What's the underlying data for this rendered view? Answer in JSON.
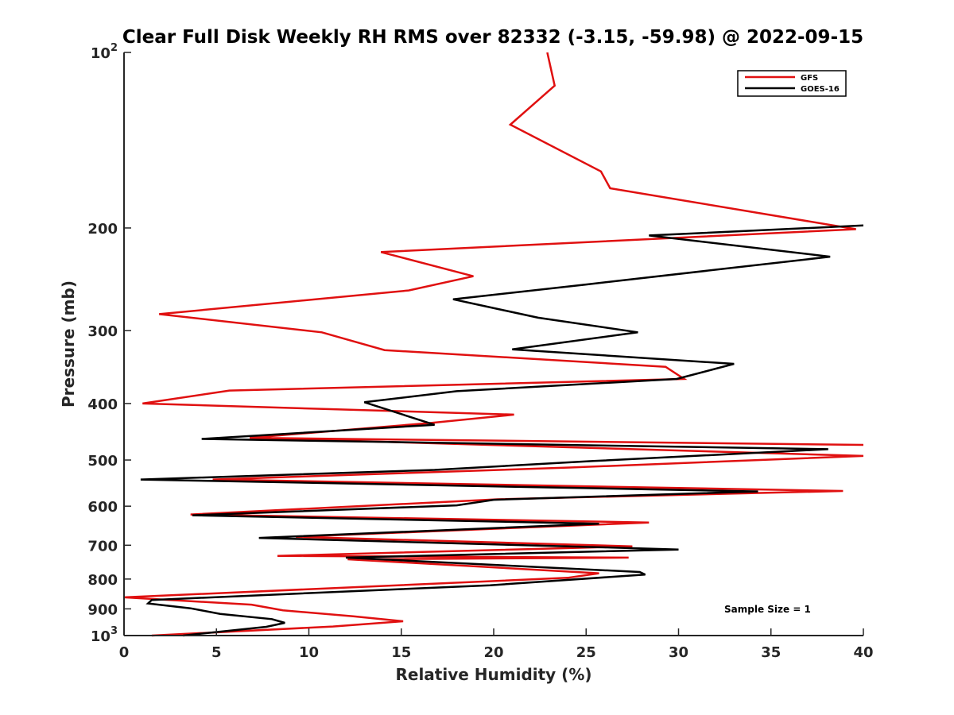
{
  "chart_data": {
    "type": "line",
    "title": "Clear Full Disk Weekly RH RMS over 82332 (-3.15, -59.98) @ 2022-09-15",
    "xlabel": "Relative Humidity (%)",
    "ylabel": "Pressure (mb)",
    "xlim": [
      0,
      40
    ],
    "ylim": [
      100,
      1000
    ],
    "y_scale": "log",
    "y_reversed": true,
    "grid": false,
    "legend_position": "top-right",
    "x_ticks": [
      "0",
      "5",
      "10",
      "15",
      "20",
      "25",
      "30",
      "35",
      "40"
    ],
    "y_ticks": [
      {
        "value": 100,
        "base": "10",
        "exp": "2"
      },
      {
        "value": 200,
        "label": "200"
      },
      {
        "value": 300,
        "label": "300"
      },
      {
        "value": 400,
        "label": "400"
      },
      {
        "value": 500,
        "label": "500"
      },
      {
        "value": 600,
        "label": "600"
      },
      {
        "value": 700,
        "label": "700"
      },
      {
        "value": 800,
        "label": "800"
      },
      {
        "value": 900,
        "label": "900"
      },
      {
        "value": 1000,
        "base": "10",
        "exp": "3"
      }
    ],
    "annotation": "Sample Size = 1",
    "series": [
      {
        "name": "GFS",
        "color": "#e01010",
        "points": [
          [
            22.9,
            100
          ],
          [
            23.3,
            114
          ],
          [
            20.9,
            133
          ],
          [
            25.8,
            160
          ],
          [
            26.3,
            171
          ],
          [
            39.6,
            201
          ],
          [
            13.9,
            220
          ],
          [
            18.9,
            242
          ],
          [
            15.4,
            256
          ],
          [
            1.9,
            281
          ],
          [
            10.7,
            302
          ],
          [
            14.1,
            324
          ],
          [
            29.3,
            346
          ],
          [
            30.3,
            363
          ],
          [
            5.7,
            380
          ],
          [
            1.0,
            400
          ],
          [
            21.1,
            418
          ],
          [
            16.6,
            432
          ],
          [
            6.8,
            458
          ],
          [
            40.0,
            471
          ],
          [
            6.8,
            458
          ],
          [
            40.0,
            492
          ],
          [
            24.1,
            515
          ],
          [
            4.8,
            540
          ],
          [
            38.9,
            565
          ],
          [
            20.2,
            584
          ],
          [
            3.6,
            620
          ],
          [
            28.4,
            640
          ],
          [
            9.3,
            677
          ],
          [
            27.5,
            703
          ],
          [
            8.3,
            730
          ],
          [
            27.3,
            735
          ],
          [
            12.1,
            740
          ],
          [
            25.7,
            782
          ],
          [
            24.0,
            796
          ],
          [
            0.0,
            860
          ],
          [
            6.9,
            885
          ],
          [
            8.6,
            905
          ],
          [
            12.4,
            927
          ],
          [
            15.1,
            945
          ],
          [
            11.3,
            965
          ],
          [
            1.5,
            1000
          ]
        ]
      },
      {
        "name": "GOES-16",
        "color": "#000000",
        "points": [
          [
            40.0,
            198
          ],
          [
            28.4,
            206
          ],
          [
            38.2,
            224
          ],
          [
            25.0,
            250
          ],
          [
            17.8,
            265
          ],
          [
            22.4,
            285
          ],
          [
            27.8,
            302
          ],
          [
            21.0,
            323
          ],
          [
            33.0,
            342
          ],
          [
            29.9,
            363
          ],
          [
            18.0,
            381
          ],
          [
            13.0,
            398
          ],
          [
            16.8,
            435
          ],
          [
            4.2,
            460
          ],
          [
            38.1,
            479
          ],
          [
            25.4,
            502
          ],
          [
            16.8,
            520
          ],
          [
            0.9,
            540
          ],
          [
            34.3,
            566
          ],
          [
            20.0,
            585
          ],
          [
            18.0,
            598
          ],
          [
            3.7,
            622
          ],
          [
            25.7,
            643
          ],
          [
            7.3,
            680
          ],
          [
            26.0,
            706
          ],
          [
            30.0,
            712
          ],
          [
            12.0,
            735
          ],
          [
            27.9,
            778
          ],
          [
            28.2,
            786
          ],
          [
            19.8,
            820
          ],
          [
            1.5,
            869
          ],
          [
            1.3,
            881
          ],
          [
            3.6,
            898
          ],
          [
            5.2,
            918
          ],
          [
            8.0,
            937
          ],
          [
            8.7,
            951
          ],
          [
            7.7,
            966
          ],
          [
            3.2,
            1000
          ]
        ]
      }
    ]
  }
}
